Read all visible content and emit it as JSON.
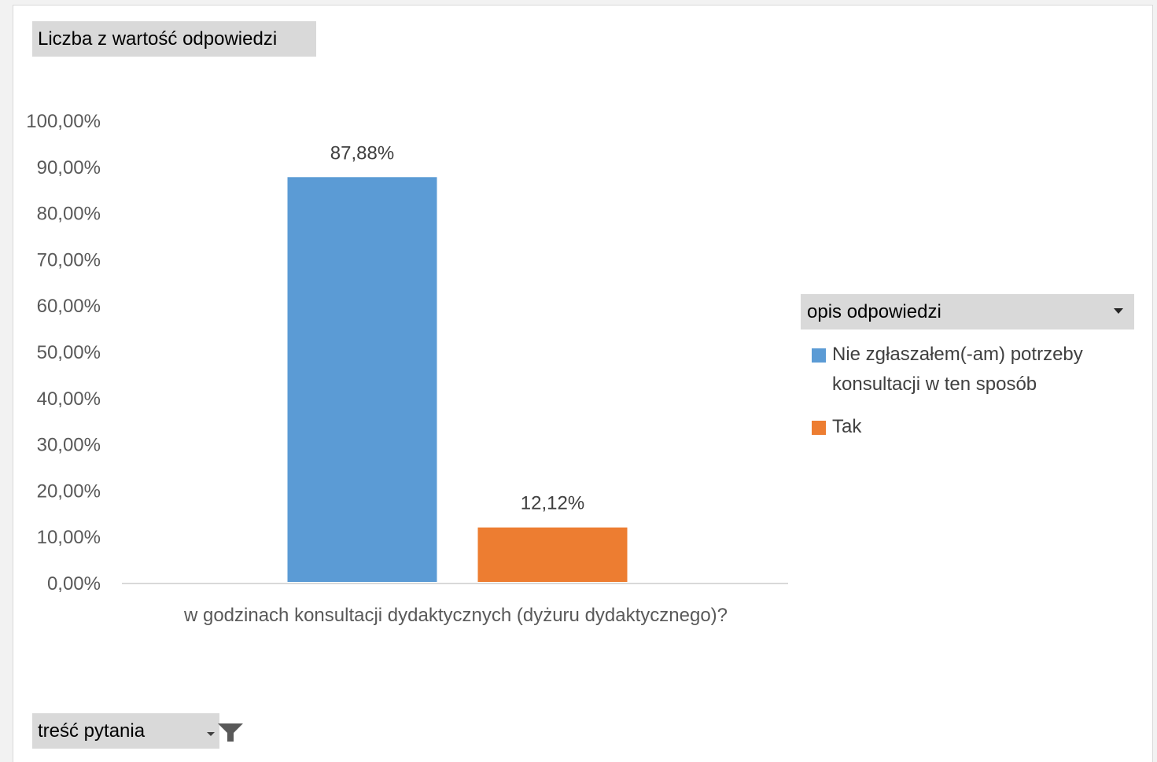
{
  "value_field": {
    "label": "Liczba z wartość odpowiedzi"
  },
  "category_field": {
    "label": "treść pytania",
    "icon": "filter-icon"
  },
  "legend": {
    "field_label": "opis odpowiedzi",
    "icon": "chevron-down-icon",
    "items": [
      {
        "label": "Nie zgłaszałem(-am) potrzeby konsultacji w ten sposób",
        "color": "#5b9bd5"
      },
      {
        "label": "Tak",
        "color": "#ed7d31"
      }
    ]
  },
  "colors": {
    "axis_text": "#595959",
    "axis_line": "#d9d9d9",
    "field_button": "#d9d9d9"
  },
  "chart_data": {
    "type": "bar",
    "categories": [
      "w godzinach konsultacji dydaktycznych (dyżuru dydaktycznego)?"
    ],
    "series": [
      {
        "name": "Nie zgłaszałem(-am) potrzeby konsultacji w ten sposób",
        "values": [
          0.8788
        ],
        "data_labels": [
          "87,88%"
        ],
        "color": "#5b9bd5"
      },
      {
        "name": "Tak",
        "values": [
          0.1212
        ],
        "data_labels": [
          "12,12%"
        ],
        "color": "#ed7d31"
      }
    ],
    "ylim": [
      0,
      1
    ],
    "yticks": [
      0,
      0.1,
      0.2,
      0.3,
      0.4,
      0.5,
      0.6,
      0.7,
      0.8,
      0.9,
      1.0
    ],
    "ytick_labels": [
      "0,00%",
      "10,00%",
      "20,00%",
      "30,00%",
      "40,00%",
      "50,00%",
      "60,00%",
      "70,00%",
      "80,00%",
      "90,00%",
      "100,00%"
    ],
    "title": "",
    "xlabel": "",
    "ylabel": "",
    "grid": false,
    "legend_position": "right"
  }
}
